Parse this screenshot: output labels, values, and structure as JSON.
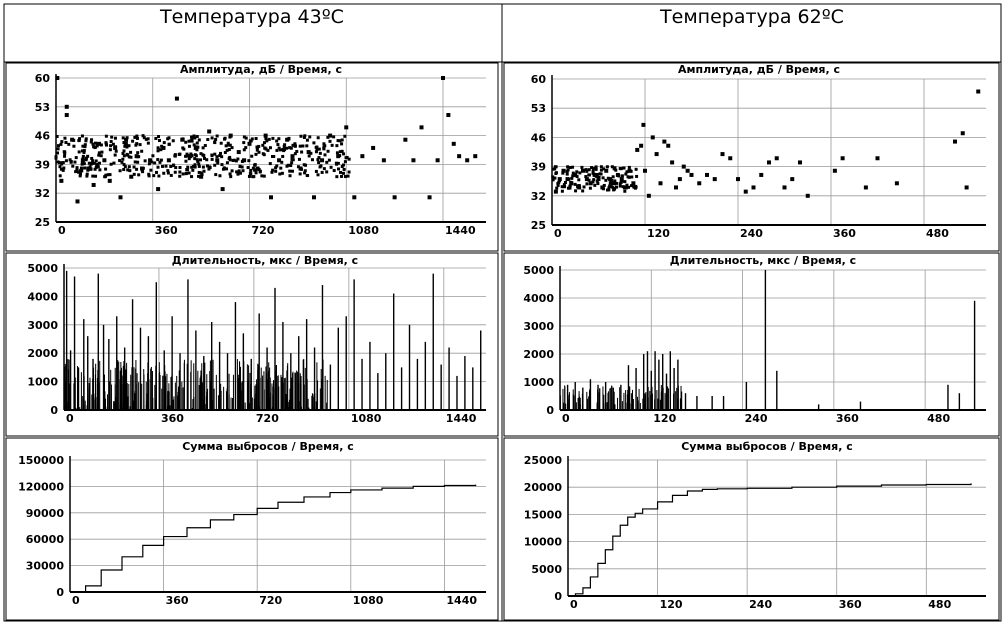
{
  "columns": [
    {
      "title": "Температура 43ºС"
    },
    {
      "title": "Температура 62ºС"
    }
  ],
  "chart_data": [
    {
      "id": "amp43",
      "type": "scatter",
      "title": "Амплитуда, дБ / Время, с",
      "xlim": [
        0,
        1600
      ],
      "ylim": [
        25,
        60
      ],
      "xticks": [
        0,
        360,
        720,
        1080,
        1440
      ],
      "yticks": [
        25,
        32,
        39,
        46,
        53,
        60
      ],
      "points": [
        [
          5,
          60
        ],
        [
          40,
          51
        ],
        [
          40,
          53
        ],
        [
          20,
          35
        ],
        [
          60,
          45
        ],
        [
          80,
          30
        ],
        [
          100,
          40
        ],
        [
          120,
          38
        ],
        [
          140,
          34
        ],
        [
          160,
          44
        ],
        [
          180,
          40
        ],
        [
          200,
          35
        ],
        [
          220,
          43
        ],
        [
          240,
          31
        ],
        [
          260,
          44
        ],
        [
          280,
          36
        ],
        [
          300,
          41
        ],
        [
          320,
          38
        ],
        [
          350,
          40
        ],
        [
          380,
          33
        ],
        [
          400,
          43
        ],
        [
          420,
          40
        ],
        [
          450,
          55
        ],
        [
          470,
          45
        ],
        [
          500,
          41
        ],
        [
          520,
          43
        ],
        [
          540,
          36
        ],
        [
          570,
          47
        ],
        [
          600,
          40
        ],
        [
          620,
          33
        ],
        [
          650,
          46
        ],
        [
          680,
          42
        ],
        [
          700,
          40
        ],
        [
          720,
          44
        ],
        [
          750,
          38
        ],
        [
          780,
          46
        ],
        [
          800,
          31
        ],
        [
          830,
          40
        ],
        [
          860,
          45
        ],
        [
          880,
          41
        ],
        [
          910,
          38
        ],
        [
          940,
          42
        ],
        [
          960,
          31
        ],
        [
          990,
          40
        ],
        [
          1020,
          46
        ],
        [
          1050,
          41
        ],
        [
          1080,
          48
        ],
        [
          1110,
          31
        ],
        [
          1140,
          41
        ],
        [
          1180,
          43
        ],
        [
          1220,
          40
        ],
        [
          1260,
          31
        ],
        [
          1300,
          45
        ],
        [
          1330,
          40
        ],
        [
          1360,
          48
        ],
        [
          1390,
          31
        ],
        [
          1420,
          40
        ],
        [
          1460,
          51
        ],
        [
          1480,
          44
        ],
        [
          1500,
          41
        ],
        [
          1530,
          40
        ],
        [
          1560,
          41
        ],
        [
          1440,
          60
        ]
      ],
      "dense_band": {
        "x": [
          0,
          1600
        ],
        "y_center": 41,
        "y_spread": 5,
        "density": "высокая до 1100 с"
      }
    },
    {
      "id": "amp62",
      "type": "scatter",
      "title": "Амплитуда, дБ / Время, с",
      "xlim": [
        0,
        560
      ],
      "ylim": [
        25,
        60
      ],
      "xticks": [
        0,
        120,
        240,
        360,
        480
      ],
      "yticks": [
        25,
        32,
        39,
        46,
        53,
        60
      ],
      "points": [
        [
          5,
          33
        ],
        [
          10,
          36
        ],
        [
          15,
          38
        ],
        [
          20,
          36
        ],
        [
          25,
          35
        ],
        [
          30,
          37
        ],
        [
          35,
          34
        ],
        [
          40,
          38
        ],
        [
          45,
          36
        ],
        [
          50,
          35
        ],
        [
          55,
          37
        ],
        [
          60,
          36
        ],
        [
          65,
          34
        ],
        [
          70,
          38
        ],
        [
          75,
          36
        ],
        [
          80,
          35
        ],
        [
          85,
          37
        ],
        [
          90,
          36
        ],
        [
          95,
          34
        ],
        [
          100,
          38
        ],
        [
          105,
          35
        ],
        [
          110,
          43
        ],
        [
          115,
          44
        ],
        [
          118,
          49
        ],
        [
          120,
          38
        ],
        [
          125,
          32
        ],
        [
          130,
          46
        ],
        [
          135,
          42
        ],
        [
          140,
          35
        ],
        [
          145,
          45
        ],
        [
          150,
          44
        ],
        [
          155,
          40
        ],
        [
          160,
          34
        ],
        [
          165,
          36
        ],
        [
          170,
          39
        ],
        [
          175,
          38
        ],
        [
          180,
          37
        ],
        [
          190,
          35
        ],
        [
          200,
          37
        ],
        [
          210,
          36
        ],
        [
          220,
          42
        ],
        [
          230,
          41
        ],
        [
          240,
          36
        ],
        [
          250,
          33
        ],
        [
          260,
          34
        ],
        [
          270,
          37
        ],
        [
          280,
          40
        ],
        [
          290,
          41
        ],
        [
          300,
          34
        ],
        [
          310,
          36
        ],
        [
          320,
          40
        ],
        [
          330,
          32
        ],
        [
          365,
          38
        ],
        [
          375,
          41
        ],
        [
          405,
          34
        ],
        [
          420,
          41
        ],
        [
          445,
          35
        ],
        [
          520,
          45
        ],
        [
          530,
          47
        ],
        [
          535,
          34
        ],
        [
          550,
          57
        ]
      ]
    },
    {
      "id": "dur43",
      "type": "bar",
      "title": "Длительность, мкс / Время, с",
      "xlim": [
        0,
        1600
      ],
      "ylim": [
        0,
        5000
      ],
      "xticks": [
        0,
        360,
        720,
        1080,
        1440
      ],
      "yticks": [
        0,
        1000,
        2000,
        3000,
        4000,
        5000
      ],
      "bars": [
        [
          10,
          4900
        ],
        [
          25,
          2100
        ],
        [
          40,
          4700
        ],
        [
          55,
          1500
        ],
        [
          75,
          3200
        ],
        [
          90,
          2600
        ],
        [
          110,
          1800
        ],
        [
          130,
          4800
        ],
        [
          150,
          3000
        ],
        [
          170,
          2500
        ],
        [
          200,
          3300
        ],
        [
          230,
          2200
        ],
        [
          260,
          3900
        ],
        [
          290,
          2900
        ],
        [
          320,
          2600
        ],
        [
          350,
          4500
        ],
        [
          380,
          2100
        ],
        [
          410,
          3300
        ],
        [
          440,
          2000
        ],
        [
          470,
          4600
        ],
        [
          500,
          2800
        ],
        [
          530,
          1900
        ],
        [
          560,
          3100
        ],
        [
          590,
          2400
        ],
        [
          620,
          2000
        ],
        [
          650,
          3800
        ],
        [
          680,
          2700
        ],
        [
          710,
          1800
        ],
        [
          740,
          3400
        ],
        [
          770,
          2200
        ],
        [
          800,
          4300
        ],
        [
          830,
          3100
        ],
        [
          860,
          2000
        ],
        [
          890,
          2600
        ],
        [
          920,
          3200
        ],
        [
          950,
          2200
        ],
        [
          980,
          4400
        ],
        [
          1010,
          1600
        ],
        [
          1040,
          2900
        ],
        [
          1070,
          3300
        ],
        [
          1100,
          4600
        ],
        [
          1130,
          1800
        ],
        [
          1160,
          2400
        ],
        [
          1190,
          1300
        ],
        [
          1220,
          2000
        ],
        [
          1250,
          4100
        ],
        [
          1280,
          1500
        ],
        [
          1310,
          3000
        ],
        [
          1340,
          1800
        ],
        [
          1370,
          2400
        ],
        [
          1400,
          4800
        ],
        [
          1430,
          1600
        ],
        [
          1460,
          2200
        ],
        [
          1490,
          1200
        ],
        [
          1520,
          1900
        ],
        [
          1550,
          1500
        ],
        [
          1580,
          2800
        ]
      ],
      "baseline_band": {
        "x": [
          0,
          1000
        ],
        "y": [
          0,
          1800
        ]
      }
    },
    {
      "id": "dur62",
      "type": "bar",
      "title": "Длительность, мкс / Время, с",
      "xlim": [
        0,
        560
      ],
      "ylim": [
        0,
        5000
      ],
      "xticks": [
        0,
        120,
        240,
        360,
        480
      ],
      "yticks": [
        0,
        1000,
        2000,
        3000,
        4000,
        5000
      ],
      "bars": [
        [
          10,
          900
        ],
        [
          20,
          1000
        ],
        [
          30,
          800
        ],
        [
          40,
          1100
        ],
        [
          50,
          900
        ],
        [
          60,
          1000
        ],
        [
          70,
          800
        ],
        [
          80,
          900
        ],
        [
          90,
          1600
        ],
        [
          100,
          1500
        ],
        [
          110,
          2000
        ],
        [
          115,
          2100
        ],
        [
          120,
          1400
        ],
        [
          125,
          2100
        ],
        [
          130,
          1800
        ],
        [
          135,
          2000
        ],
        [
          140,
          1300
        ],
        [
          145,
          2100
        ],
        [
          150,
          1500
        ],
        [
          155,
          1800
        ],
        [
          165,
          600
        ],
        [
          180,
          500
        ],
        [
          200,
          500
        ],
        [
          215,
          500
        ],
        [
          245,
          1000
        ],
        [
          270,
          5000
        ],
        [
          285,
          1400
        ],
        [
          340,
          200
        ],
        [
          395,
          300
        ],
        [
          510,
          900
        ],
        [
          525,
          600
        ],
        [
          545,
          3900
        ]
      ],
      "baseline_band": {
        "x": [
          0,
          160
        ],
        "y": [
          200,
          900
        ]
      }
    },
    {
      "id": "sum43",
      "type": "line",
      "title": "Сумма выбросов / Время, с",
      "xlim": [
        0,
        1600
      ],
      "ylim": [
        0,
        150000
      ],
      "xticks": [
        0,
        360,
        720,
        1080,
        1440
      ],
      "yticks": [
        0,
        30000,
        60000,
        90000,
        120000,
        150000
      ],
      "x": [
        0,
        60,
        120,
        200,
        280,
        360,
        450,
        540,
        630,
        720,
        800,
        900,
        1000,
        1080,
        1200,
        1320,
        1440,
        1560
      ],
      "y": [
        0,
        7000,
        25000,
        40000,
        53000,
        63000,
        73000,
        82000,
        88000,
        95000,
        102000,
        108000,
        113000,
        116000,
        118000,
        120000,
        121000,
        122000
      ]
    },
    {
      "id": "sum62",
      "type": "line",
      "title": "Сумма выбросов / Время, с",
      "xlim": [
        0,
        560
      ],
      "ylim": [
        0,
        25000
      ],
      "xticks": [
        0,
        120,
        240,
        360,
        480
      ],
      "yticks": [
        0,
        5000,
        10000,
        15000,
        20000,
        25000
      ],
      "x": [
        0,
        10,
        20,
        30,
        40,
        50,
        60,
        70,
        80,
        90,
        100,
        120,
        140,
        160,
        180,
        200,
        240,
        300,
        360,
        420,
        480,
        540
      ],
      "y": [
        0,
        400,
        1500,
        3500,
        6000,
        8500,
        11000,
        13000,
        14500,
        15200,
        16000,
        17300,
        18500,
        19300,
        19600,
        19700,
        19800,
        20000,
        20200,
        20400,
        20500,
        20700
      ]
    }
  ]
}
